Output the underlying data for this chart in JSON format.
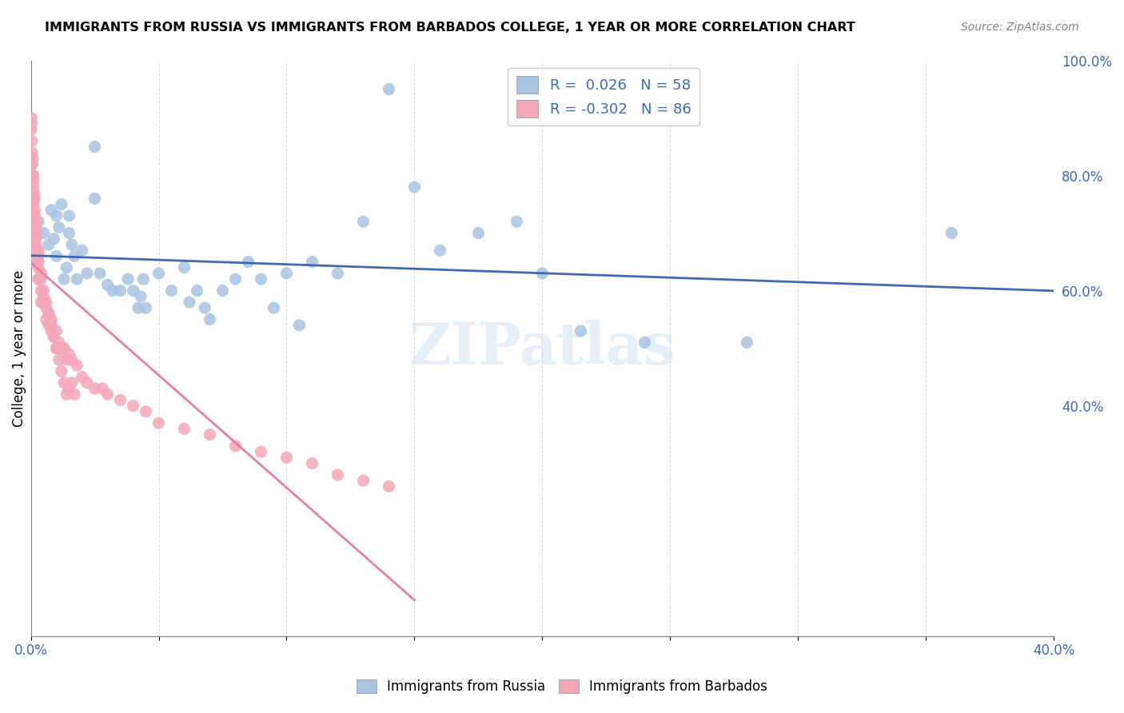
{
  "title": "IMMIGRANTS FROM RUSSIA VS IMMIGRANTS FROM BARBADOS COLLEGE, 1 YEAR OR MORE CORRELATION CHART",
  "source": "Source: ZipAtlas.com",
  "xlabel_bottom": "",
  "ylabel": "College, 1 year or more",
  "xmin": 0.0,
  "xmax": 0.4,
  "ymin": 0.0,
  "ymax": 1.0,
  "x_ticks": [
    0.0,
    0.05,
    0.1,
    0.15,
    0.2,
    0.25,
    0.3,
    0.35,
    0.4
  ],
  "x_tick_labels": [
    "0.0%",
    "",
    "",
    "",
    "",
    "",
    "",
    "",
    "40.0%"
  ],
  "y_ticks_left": [
    0.0,
    0.2,
    0.4,
    0.6,
    0.8,
    1.0
  ],
  "y_ticks_right_labels": [
    "",
    "40.0%",
    "60.0%",
    "80.0%",
    "100.0%"
  ],
  "y_ticks_right_vals": [
    0.0,
    0.4,
    0.6,
    0.8,
    1.0
  ],
  "legend_R_russia": "0.026",
  "legend_N_russia": "58",
  "legend_R_barbados": "-0.302",
  "legend_N_barbados": "86",
  "color_russia": "#a8c4e0",
  "color_barbados": "#f4a7b9",
  "line_color_russia": "#4169b0",
  "line_color_barbados": "#e87fa0",
  "watermark": "ZIPatlas",
  "russia_x": [
    0.001,
    0.003,
    0.005,
    0.007,
    0.008,
    0.009,
    0.01,
    0.01,
    0.011,
    0.012,
    0.013,
    0.014,
    0.015,
    0.015,
    0.016,
    0.017,
    0.018,
    0.02,
    0.022,
    0.025,
    0.025,
    0.027,
    0.03,
    0.032,
    0.035,
    0.038,
    0.04,
    0.042,
    0.043,
    0.044,
    0.045,
    0.05,
    0.055,
    0.06,
    0.062,
    0.065,
    0.068,
    0.07,
    0.075,
    0.08,
    0.085,
    0.09,
    0.095,
    0.1,
    0.105,
    0.11,
    0.12,
    0.13,
    0.14,
    0.15,
    0.16,
    0.175,
    0.19,
    0.2,
    0.215,
    0.24,
    0.28,
    0.36
  ],
  "russia_y": [
    0.65,
    0.72,
    0.7,
    0.68,
    0.74,
    0.69,
    0.73,
    0.66,
    0.71,
    0.75,
    0.62,
    0.64,
    0.73,
    0.7,
    0.68,
    0.66,
    0.62,
    0.67,
    0.63,
    0.85,
    0.76,
    0.63,
    0.61,
    0.6,
    0.6,
    0.62,
    0.6,
    0.57,
    0.59,
    0.62,
    0.57,
    0.63,
    0.6,
    0.64,
    0.58,
    0.6,
    0.57,
    0.55,
    0.6,
    0.62,
    0.65,
    0.62,
    0.57,
    0.63,
    0.54,
    0.65,
    0.63,
    0.72,
    0.95,
    0.78,
    0.67,
    0.7,
    0.72,
    0.63,
    0.53,
    0.51,
    0.51,
    0.7
  ],
  "barbados_x": [
    0.0001,
    0.0002,
    0.0003,
    0.0004,
    0.0005,
    0.0006,
    0.0007,
    0.0008,
    0.0009,
    0.001,
    0.001,
    0.0012,
    0.0013,
    0.0014,
    0.0015,
    0.0016,
    0.0017,
    0.0018,
    0.002,
    0.002,
    0.002,
    0.003,
    0.003,
    0.003,
    0.004,
    0.004,
    0.004,
    0.005,
    0.005,
    0.006,
    0.006,
    0.007,
    0.007,
    0.008,
    0.008,
    0.009,
    0.01,
    0.01,
    0.011,
    0.012,
    0.013,
    0.014,
    0.015,
    0.016,
    0.018,
    0.02,
    0.022,
    0.025,
    0.028,
    0.03,
    0.035,
    0.04,
    0.045,
    0.05,
    0.06,
    0.07,
    0.08,
    0.09,
    0.1,
    0.11,
    0.12,
    0.13,
    0.14,
    0.015,
    0.016,
    0.017,
    0.003,
    0.003,
    0.004,
    0.005,
    0.006,
    0.007,
    0.008,
    0.009,
    0.01,
    0.011,
    0.012,
    0.013,
    0.014,
    0.002,
    0.001,
    0.001,
    0.0005,
    0.0006,
    0.002,
    0.003
  ],
  "barbados_y": [
    0.88,
    0.9,
    0.89,
    0.86,
    0.84,
    0.82,
    0.8,
    0.83,
    0.8,
    0.78,
    0.79,
    0.76,
    0.77,
    0.76,
    0.74,
    0.73,
    0.72,
    0.71,
    0.72,
    0.7,
    0.67,
    0.66,
    0.64,
    0.62,
    0.62,
    0.6,
    0.58,
    0.59,
    0.58,
    0.57,
    0.55,
    0.56,
    0.54,
    0.53,
    0.55,
    0.52,
    0.53,
    0.5,
    0.51,
    0.5,
    0.5,
    0.48,
    0.49,
    0.48,
    0.47,
    0.45,
    0.44,
    0.43,
    0.43,
    0.42,
    0.41,
    0.4,
    0.39,
    0.37,
    0.36,
    0.35,
    0.33,
    0.32,
    0.31,
    0.3,
    0.28,
    0.27,
    0.26,
    0.43,
    0.44,
    0.42,
    0.67,
    0.65,
    0.63,
    0.6,
    0.58,
    0.56,
    0.54,
    0.52,
    0.5,
    0.48,
    0.46,
    0.44,
    0.42,
    0.69,
    0.75,
    0.73,
    0.82,
    0.8,
    0.68,
    0.62
  ]
}
